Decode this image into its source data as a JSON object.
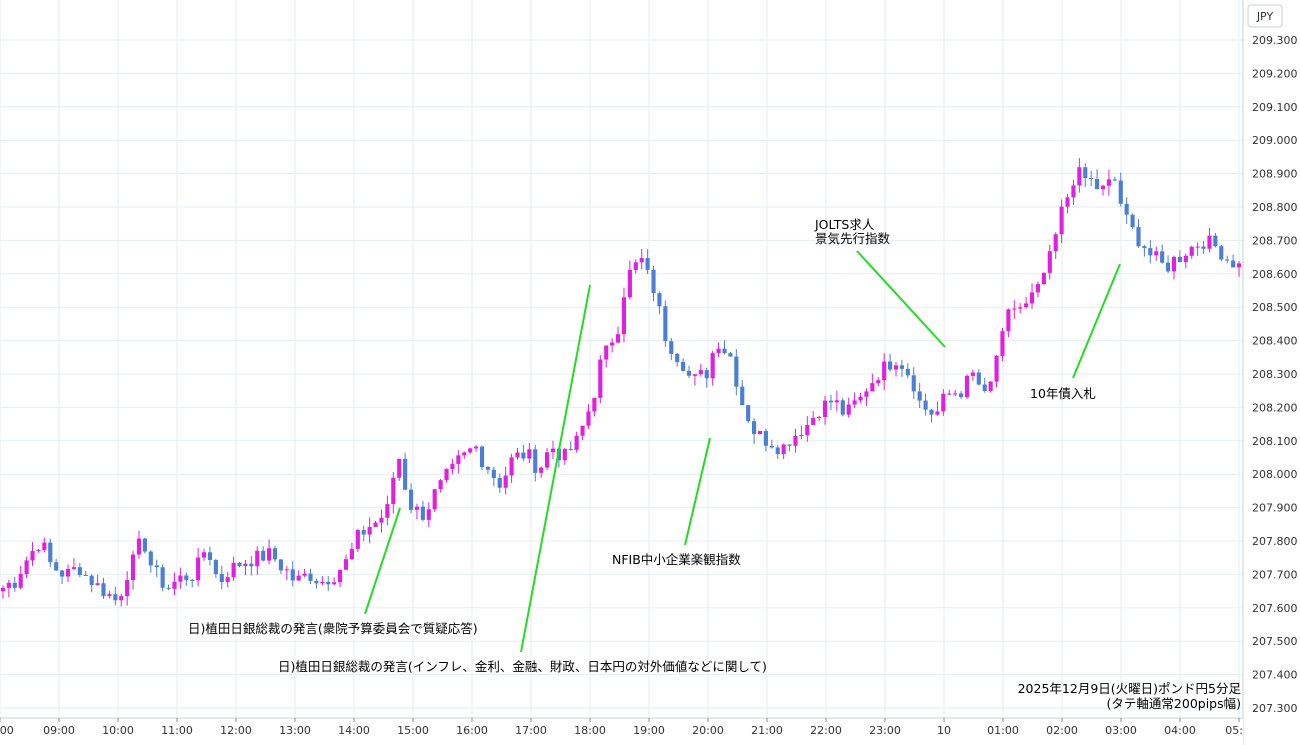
{
  "chart_data": {
    "type": "candlestick",
    "currency": "JPY",
    "ylim": [
      207.28,
      209.34
    ],
    "y_ticks": [
      "207.300",
      "207.400",
      "207.500",
      "207.600",
      "207.700",
      "207.800",
      "207.900",
      "208.000",
      "208.100",
      "208.200",
      "208.300",
      "208.400",
      "208.500",
      "208.600",
      "208.700",
      "208.800",
      "208.900",
      "209.000",
      "209.100",
      "209.200",
      "209.300"
    ],
    "x_ticks": [
      ":00",
      "09:00",
      "10:00",
      "11:00",
      "12:00",
      "13:00",
      "14:00",
      "15:00",
      "16:00",
      "17:00",
      "18:00",
      "19:00",
      "20:00",
      "21:00",
      "22:00",
      "23:00",
      "10",
      "01:00",
      "02:00",
      "03:00",
      "04:00",
      "05:"
    ],
    "grid": true,
    "colors": {
      "up": "#e020e0",
      "down": "#4a7fd4",
      "leader": "#22dd22"
    },
    "footer": {
      "line1": "2025年12月9日(火曜日)ポンド円5分足",
      "line2": "(タテ軸通常200pips幅)"
    },
    "annotations": [
      {
        "id": "ueda-1",
        "lines": [
          "日)植田日銀総裁の発言(衆院予算委員会で質疑応答)"
        ]
      },
      {
        "id": "ueda-2",
        "lines": [
          "日)植田日銀総裁の発言(インフレ、金利、金融、財政、日本円の対外価値などに関して)"
        ]
      },
      {
        "id": "nfib",
        "lines": [
          "NFIB中小企業楽観指数"
        ]
      },
      {
        "id": "jolts",
        "lines": [
          "JOLTS求人",
          "景気先行指数"
        ]
      },
      {
        "id": "bond10",
        "lines": [
          "10年債入札"
        ]
      }
    ],
    "anchors": [
      [
        207.66,
        207.68,
        207.75,
        207.8,
        207.72
      ],
      [
        207.7,
        207.72,
        207.68,
        207.65,
        207.62
      ],
      [
        207.72,
        207.8,
        207.7,
        207.66,
        207.69
      ],
      [
        207.7,
        207.78,
        207.68,
        207.72,
        207.74
      ],
      [
        207.75,
        207.76,
        207.72,
        207.68,
        207.7
      ],
      [
        207.68,
        207.7,
        207.74,
        207.82,
        207.85
      ],
      [
        207.88,
        208.05,
        207.9,
        207.88,
        207.95
      ],
      [
        208.0,
        208.05,
        208.08,
        208.02,
        207.97
      ],
      [
        208.05,
        208.06,
        208.02,
        208.08,
        208.05
      ],
      [
        208.1,
        208.2,
        208.35,
        208.42,
        208.6
      ],
      [
        208.64,
        208.55,
        208.4,
        208.35,
        208.28
      ],
      [
        208.3,
        208.4,
        208.35,
        208.2,
        208.12
      ],
      [
        208.1,
        208.08,
        208.12,
        208.15,
        208.2
      ],
      [
        208.22,
        208.18,
        208.22,
        208.28,
        208.32
      ],
      [
        208.35,
        208.3,
        208.2,
        208.18,
        208.24
      ],
      [
        208.25,
        208.3,
        208.22,
        208.38,
        208.5
      ],
      [
        208.5,
        208.55,
        208.65,
        208.8,
        208.9
      ],
      [
        208.88,
        208.85,
        208.88,
        208.75,
        208.7
      ],
      [
        208.65,
        208.62,
        208.65,
        208.68,
        208.7
      ],
      [
        208.68,
        208.64,
        208.62
      ]
    ]
  }
}
